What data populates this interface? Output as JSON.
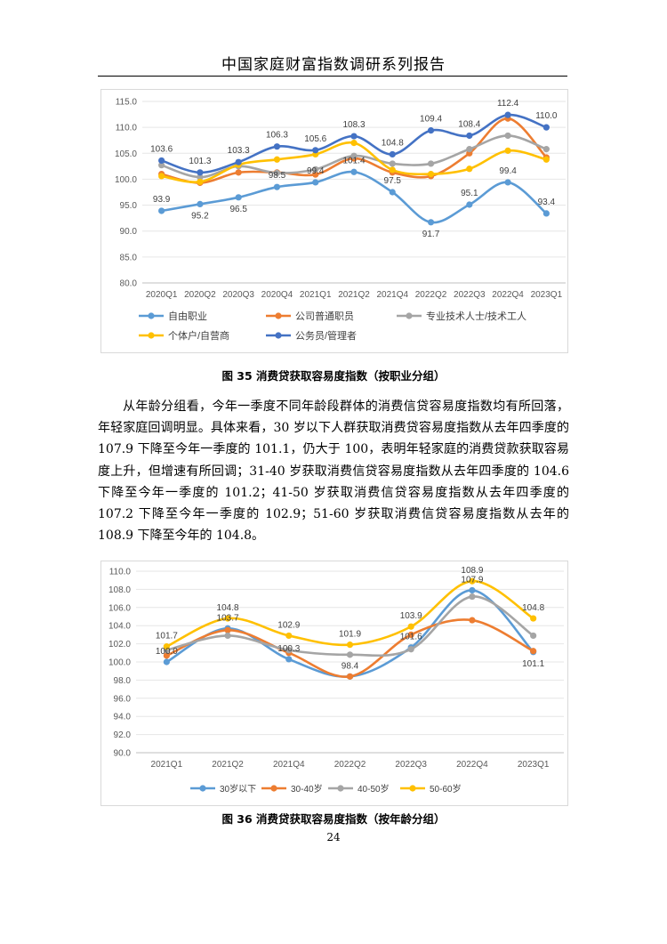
{
  "header": {
    "title": "中国家庭财富指数调研系列报告"
  },
  "figure35": {
    "caption": "图 35 消费贷获取容易度指数（按职业分组）",
    "chart_data": {
      "type": "line",
      "title": "",
      "ylim": [
        80,
        115
      ],
      "yticks": [
        "80.0",
        "85.0",
        "90.0",
        "95.0",
        "100.0",
        "105.0",
        "110.0",
        "115.0"
      ],
      "categories": [
        "2020Q1",
        "2020Q2",
        "2020Q3",
        "2020Q4",
        "2021Q1",
        "2021Q2",
        "2021Q4",
        "2022Q2",
        "2022Q3",
        "2022Q4",
        "2023Q1"
      ],
      "series": [
        {
          "name": "自由职业",
          "color": "#5b9bd5",
          "values": [
            93.9,
            95.2,
            96.5,
            98.5,
            99.4,
            101.4,
            97.5,
            91.7,
            95.1,
            99.4,
            93.4
          ],
          "labels": [
            "93.9",
            "95.2",
            "96.5",
            "98.5",
            "99.4",
            "101.4",
            "97.5",
            "91.7",
            "95.1",
            "99.4",
            "93.4"
          ]
        },
        {
          "name": "公司普通职员",
          "color": "#ed7d31",
          "values": [
            101.0,
            99.3,
            101.3,
            101.3,
            100.9,
            104.0,
            101.3,
            100.6,
            105.0,
            111.7,
            104.2
          ],
          "labels": []
        },
        {
          "name": "专业技术人士/技术工人",
          "color": "#a5a5a5",
          "values": [
            102.7,
            100.4,
            102.5,
            101.2,
            101.9,
            104.5,
            103.0,
            103.0,
            105.8,
            108.4,
            105.8
          ],
          "labels": []
        },
        {
          "name": "个体户/自营商",
          "color": "#ffc000",
          "values": [
            100.6,
            99.5,
            102.8,
            103.8,
            104.8,
            107.0,
            101.8,
            101.0,
            102.0,
            105.5,
            103.8
          ],
          "labels": []
        },
        {
          "name": "公务员/管理者",
          "color": "#4472c4",
          "values": [
            103.6,
            101.3,
            103.3,
            106.3,
            105.6,
            108.3,
            104.8,
            109.4,
            108.4,
            112.4,
            110.0
          ],
          "labels": [
            "103.6",
            "101.3",
            "103.3",
            "106.3",
            "105.6",
            "108.3",
            "104.8",
            "109.4",
            "108.4",
            "112.4",
            "110.0"
          ]
        }
      ]
    }
  },
  "body": {
    "paragraph": "从年龄分组看，今年一季度不同年龄段群体的消费信贷容易度指数均有所回落，年轻家庭回调明显。具体来看，30 岁以下人群获取消费贷容易度指数从去年四季度的 107.9 下降至今年一季度的 101.1，仍大于 100，表明年轻家庭的消费贷款获取容易度上升，但增速有所回调；31-40 岁获取消费信贷容易度指数从去年四季度的 104.6 下降至今年一季度的 101.2；41-50 岁获取消费信贷容易度指数从去年四季度的 107.2 下降至今年一季度的 102.9；51-60 岁获取消费信贷容易度指数从去年的 108.9 下降至今年的 104.8。"
  },
  "figure36": {
    "caption": "图 36 消费贷获取容易度指数（按年龄分组）",
    "chart_data": {
      "type": "line",
      "title": "",
      "ylim": [
        90,
        110
      ],
      "yticks": [
        "90.0",
        "92.0",
        "94.0",
        "96.0",
        "98.0",
        "100.0",
        "102.0",
        "104.0",
        "106.0",
        "108.0",
        "110.0"
      ],
      "categories": [
        "2021Q1",
        "2021Q2",
        "2021Q4",
        "2022Q2",
        "2022Q3",
        "2022Q4",
        "2023Q1"
      ],
      "series": [
        {
          "name": "30岁以下",
          "color": "#5b9bd5",
          "values": [
            100.0,
            103.7,
            100.3,
            98.4,
            101.6,
            107.9,
            101.1
          ],
          "labels": [
            "100.0",
            "103.7",
            "100.3",
            "98.4",
            "101.6",
            "107.9",
            "101.1"
          ]
        },
        {
          "name": "30-40岁",
          "color": "#ed7d31",
          "values": [
            100.7,
            103.5,
            101.0,
            98.4,
            103.0,
            104.6,
            101.2
          ],
          "labels": []
        },
        {
          "name": "40-50岁",
          "color": "#a5a5a5",
          "values": [
            101.3,
            102.9,
            101.3,
            100.8,
            101.4,
            107.2,
            102.9
          ],
          "labels": []
        },
        {
          "name": "50-60岁",
          "color": "#ffc000",
          "values": [
            101.7,
            104.8,
            102.9,
            101.9,
            103.9,
            108.9,
            104.8
          ],
          "labels": [
            "101.7",
            "104.8",
            "102.9",
            "101.9",
            "103.9",
            "108.9",
            "104.8"
          ]
        }
      ]
    }
  },
  "page_number": "24"
}
